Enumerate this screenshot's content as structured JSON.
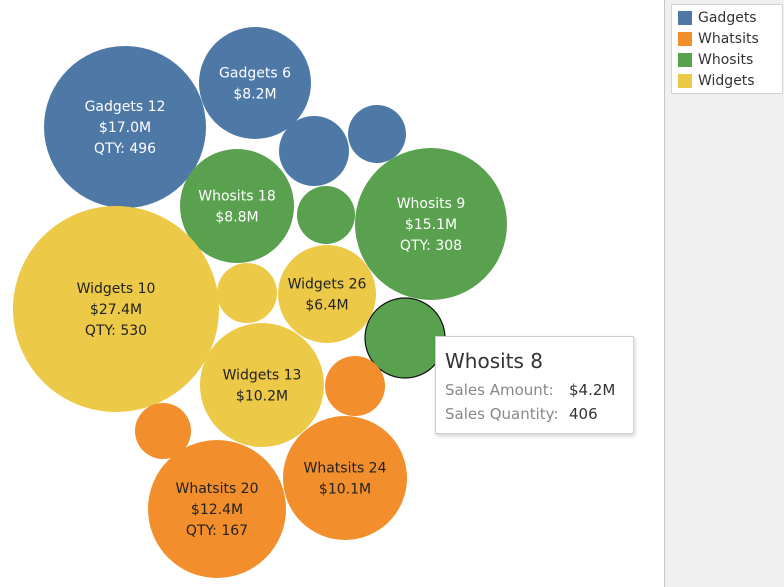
{
  "chart_data": {
    "type": "bubble",
    "title": "",
    "series_colors": {
      "Gadgets": "#4e79a7",
      "Whatsits": "#f28e2b",
      "Whosits": "#59a14f",
      "Widgets": "#edc948"
    },
    "bubbles": [
      {
        "category": "Gadgets",
        "label": "Gadgets 12",
        "sales": "$17.0M",
        "qty": "QTY: 496"
      },
      {
        "category": "Gadgets",
        "label": "Gadgets 6",
        "sales": "$8.2M",
        "qty": ""
      },
      {
        "category": "Gadgets",
        "label": "",
        "sales": "",
        "qty": ""
      },
      {
        "category": "Gadgets",
        "label": "",
        "sales": "",
        "qty": ""
      },
      {
        "category": "Whosits",
        "label": "Whosits 18",
        "sales": "$8.8M",
        "qty": ""
      },
      {
        "category": "Whosits",
        "label": "",
        "sales": "",
        "qty": ""
      },
      {
        "category": "Whosits",
        "label": "Whosits 9",
        "sales": "$15.1M",
        "qty": "QTY: 308"
      },
      {
        "category": "Widgets",
        "label": "Widgets 10",
        "sales": "$27.4M",
        "qty": "QTY: 530"
      },
      {
        "category": "Widgets",
        "label": "",
        "sales": "",
        "qty": ""
      },
      {
        "category": "Widgets",
        "label": "Widgets 26",
        "sales": "$6.4M",
        "qty": ""
      },
      {
        "category": "Whosits",
        "label": "",
        "sales": "",
        "qty": "",
        "highlighted": true
      },
      {
        "category": "Widgets",
        "label": "Widgets 13",
        "sales": "$10.2M",
        "qty": ""
      },
      {
        "category": "Whatsits",
        "label": "",
        "sales": "",
        "qty": ""
      },
      {
        "category": "Whatsits",
        "label": "",
        "sales": "",
        "qty": ""
      },
      {
        "category": "Whatsits",
        "label": "Whatsits 20",
        "sales": "$12.4M",
        "qty": "QTY: 167"
      },
      {
        "category": "Whatsits",
        "label": "Whatsits 24",
        "sales": "$10.1M",
        "qty": ""
      }
    ]
  },
  "legend": {
    "items": [
      {
        "label": "Gadgets",
        "color": "#4e79a7"
      },
      {
        "label": "Whatsits",
        "color": "#f28e2b"
      },
      {
        "label": "Whosits",
        "color": "#59a14f"
      },
      {
        "label": "Widgets",
        "color": "#edc948"
      }
    ]
  },
  "tooltip": {
    "title": "Whosits 8",
    "rows": [
      {
        "label": "Sales Amount:",
        "value": "$4.2M"
      },
      {
        "label": "Sales Quantity:",
        "value": "406"
      }
    ]
  }
}
